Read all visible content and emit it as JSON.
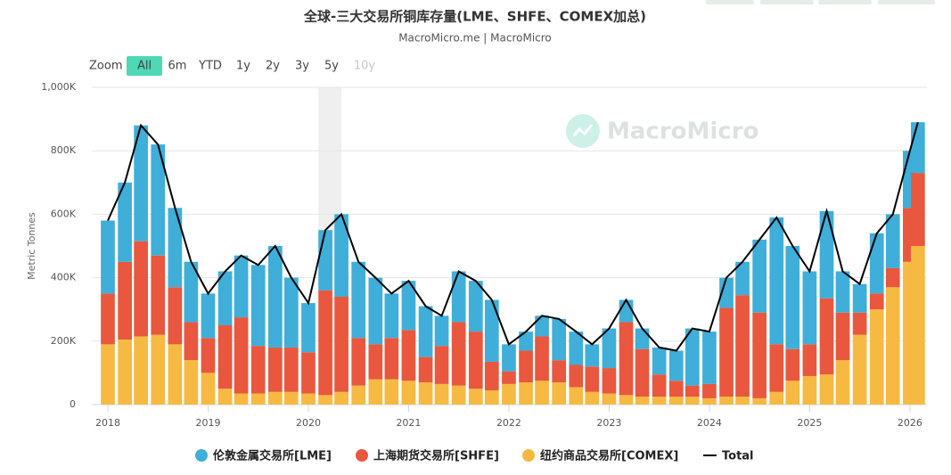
{
  "chart_data": {
    "type": "bar",
    "stacked": true,
    "title": "全球-三大交易所铜库存量(LME、SHFE、COMEX加总)",
    "subtitle": "MacroMicro.me | MacroMicro",
    "watermark": "MacroMicro",
    "zoom_label": "Zoom",
    "range_buttons": [
      "All",
      "6m",
      "YTD",
      "1y",
      "2y",
      "3y",
      "5y",
      "10y"
    ],
    "active_button": "All",
    "disabled_button": "10y",
    "y_label": "Metric Tonnes",
    "x": [
      2018.0,
      2018.17,
      2018.33,
      2018.5,
      2018.67,
      2018.83,
      2019.0,
      2019.17,
      2019.33,
      2019.5,
      2019.67,
      2019.83,
      2020.0,
      2020.17,
      2020.33,
      2020.5,
      2020.67,
      2020.83,
      2021.0,
      2021.17,
      2021.33,
      2021.5,
      2021.67,
      2021.83,
      2022.0,
      2022.17,
      2022.33,
      2022.5,
      2022.67,
      2022.83,
      2023.0,
      2023.17,
      2023.33,
      2023.5,
      2023.67,
      2023.83,
      2024.0,
      2024.17,
      2024.33,
      2024.5,
      2024.67,
      2024.83,
      2025.0,
      2025.17,
      2025.33,
      2025.5,
      2025.67,
      2025.83,
      2026.0,
      2026.08
    ],
    "series": [
      {
        "name": "伦敦金属交易所[LME]",
        "color": "#3faed9",
        "values": [
          230000,
          250000,
          365000,
          350000,
          250000,
          190000,
          140000,
          170000,
          195000,
          255000,
          320000,
          220000,
          155000,
          190000,
          260000,
          240000,
          210000,
          140000,
          155000,
          160000,
          95000,
          160000,
          160000,
          195000,
          85000,
          60000,
          65000,
          130000,
          105000,
          70000,
          125000,
          70000,
          65000,
          85000,
          95000,
          180000,
          165000,
          95000,
          105000,
          230000,
          400000,
          325000,
          230000,
          275000,
          130000,
          90000,
          190000,
          170000,
          180000,
          160000
        ]
      },
      {
        "name": "上海期货交易所[SHFE]",
        "color": "#e8573e",
        "values": [
          160000,
          245000,
          300000,
          250000,
          180000,
          120000,
          110000,
          200000,
          240000,
          150000,
          140000,
          140000,
          130000,
          330000,
          300000,
          150000,
          110000,
          130000,
          160000,
          80000,
          120000,
          200000,
          180000,
          90000,
          40000,
          100000,
          140000,
          70000,
          70000,
          80000,
          80000,
          230000,
          150000,
          70000,
          50000,
          35000,
          45000,
          280000,
          320000,
          270000,
          150000,
          100000,
          100000,
          240000,
          150000,
          70000,
          50000,
          60000,
          170000,
          230000
        ]
      },
      {
        "name": "纽约商品交易所[COMEX]",
        "color": "#f6b942",
        "values": [
          190000,
          205000,
          215000,
          220000,
          190000,
          140000,
          100000,
          50000,
          35000,
          35000,
          40000,
          40000,
          35000,
          30000,
          40000,
          60000,
          80000,
          80000,
          75000,
          70000,
          65000,
          60000,
          50000,
          45000,
          65000,
          70000,
          75000,
          70000,
          55000,
          40000,
          35000,
          30000,
          25000,
          25000,
          25000,
          25000,
          20000,
          25000,
          25000,
          20000,
          40000,
          75000,
          90000,
          95000,
          140000,
          220000,
          300000,
          370000,
          450000,
          500000
        ]
      },
      {
        "name": "Total",
        "color": "#000000",
        "type": "line",
        "values": [
          580000,
          700000,
          880000,
          820000,
          620000,
          450000,
          350000,
          420000,
          470000,
          440000,
          500000,
          400000,
          320000,
          550000,
          600000,
          450000,
          400000,
          350000,
          390000,
          310000,
          280000,
          420000,
          390000,
          330000,
          190000,
          230000,
          280000,
          270000,
          230000,
          190000,
          240000,
          330000,
          240000,
          180000,
          170000,
          240000,
          230000,
          400000,
          450000,
          520000,
          590000,
          500000,
          420000,
          610000,
          420000,
          380000,
          540000,
          600000,
          800000,
          890000
        ]
      }
    ],
    "shaded_range": [
      2020.1,
      2020.33
    ],
    "xlim": [
      2017.84,
      2026.17
    ],
    "xticks": [
      2018,
      2019,
      2020,
      2021,
      2022,
      2023,
      2024,
      2025,
      2026
    ],
    "ylim": [
      0,
      1000000
    ],
    "yticks": [
      0,
      {
        "value": 200000,
        "label": "200K"
      },
      {
        "value": 400000,
        "label": "400K"
      },
      {
        "value": 600000,
        "label": "600K"
      },
      {
        "value": 800000,
        "label": "800K"
      },
      {
        "value": 1000000,
        "label": "1,000K"
      }
    ],
    "grid": true
  }
}
